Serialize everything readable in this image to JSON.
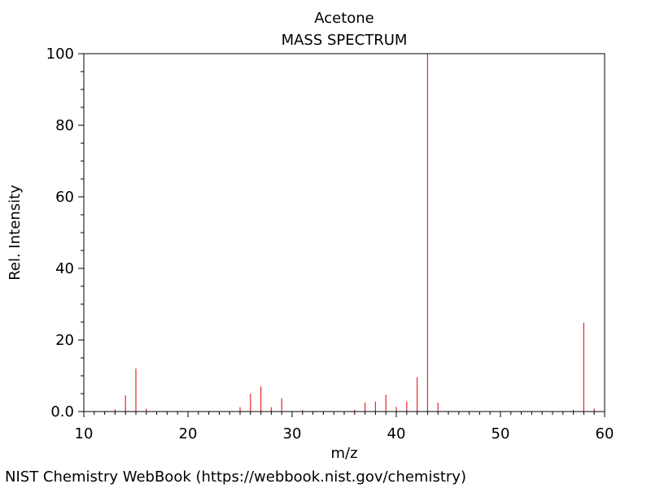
{
  "chart_data": {
    "type": "bar",
    "title": "Acetone",
    "subtitle": "MASS SPECTRUM",
    "xlabel": "m/z",
    "ylabel": "Rel. Intensity",
    "xlim": [
      10,
      60
    ],
    "ylim": [
      0,
      100
    ],
    "x_ticks": [
      "10",
      "20",
      "30",
      "40",
      "50",
      "60"
    ],
    "y_ticks": [
      "0.0",
      "20",
      "40",
      "60",
      "80",
      "100"
    ],
    "grid": false,
    "bar_color": "#e8252b",
    "peaks": [
      {
        "mz": 13,
        "intensity": 0.6
      },
      {
        "mz": 14,
        "intensity": 4.5
      },
      {
        "mz": 15,
        "intensity": 12.0
      },
      {
        "mz": 16,
        "intensity": 0.8
      },
      {
        "mz": 25,
        "intensity": 1.2
      },
      {
        "mz": 26,
        "intensity": 5.0
      },
      {
        "mz": 27,
        "intensity": 7.0
      },
      {
        "mz": 28,
        "intensity": 1.2
      },
      {
        "mz": 29,
        "intensity": 3.7
      },
      {
        "mz": 31,
        "intensity": 0.4
      },
      {
        "mz": 36,
        "intensity": 0.5
      },
      {
        "mz": 37,
        "intensity": 2.5
      },
      {
        "mz": 38,
        "intensity": 2.8
      },
      {
        "mz": 39,
        "intensity": 4.7
      },
      {
        "mz": 40,
        "intensity": 1.3
      },
      {
        "mz": 41,
        "intensity": 2.8
      },
      {
        "mz": 42,
        "intensity": 9.6
      },
      {
        "mz": 43,
        "intensity": 100
      },
      {
        "mz": 44,
        "intensity": 2.5
      },
      {
        "mz": 57,
        "intensity": 0.5
      },
      {
        "mz": 58,
        "intensity": 24.8
      },
      {
        "mz": 59,
        "intensity": 0.9
      }
    ]
  },
  "footer": {
    "source": "NIST Chemistry WebBook (https://webbook.nist.gov/chemistry)"
  }
}
